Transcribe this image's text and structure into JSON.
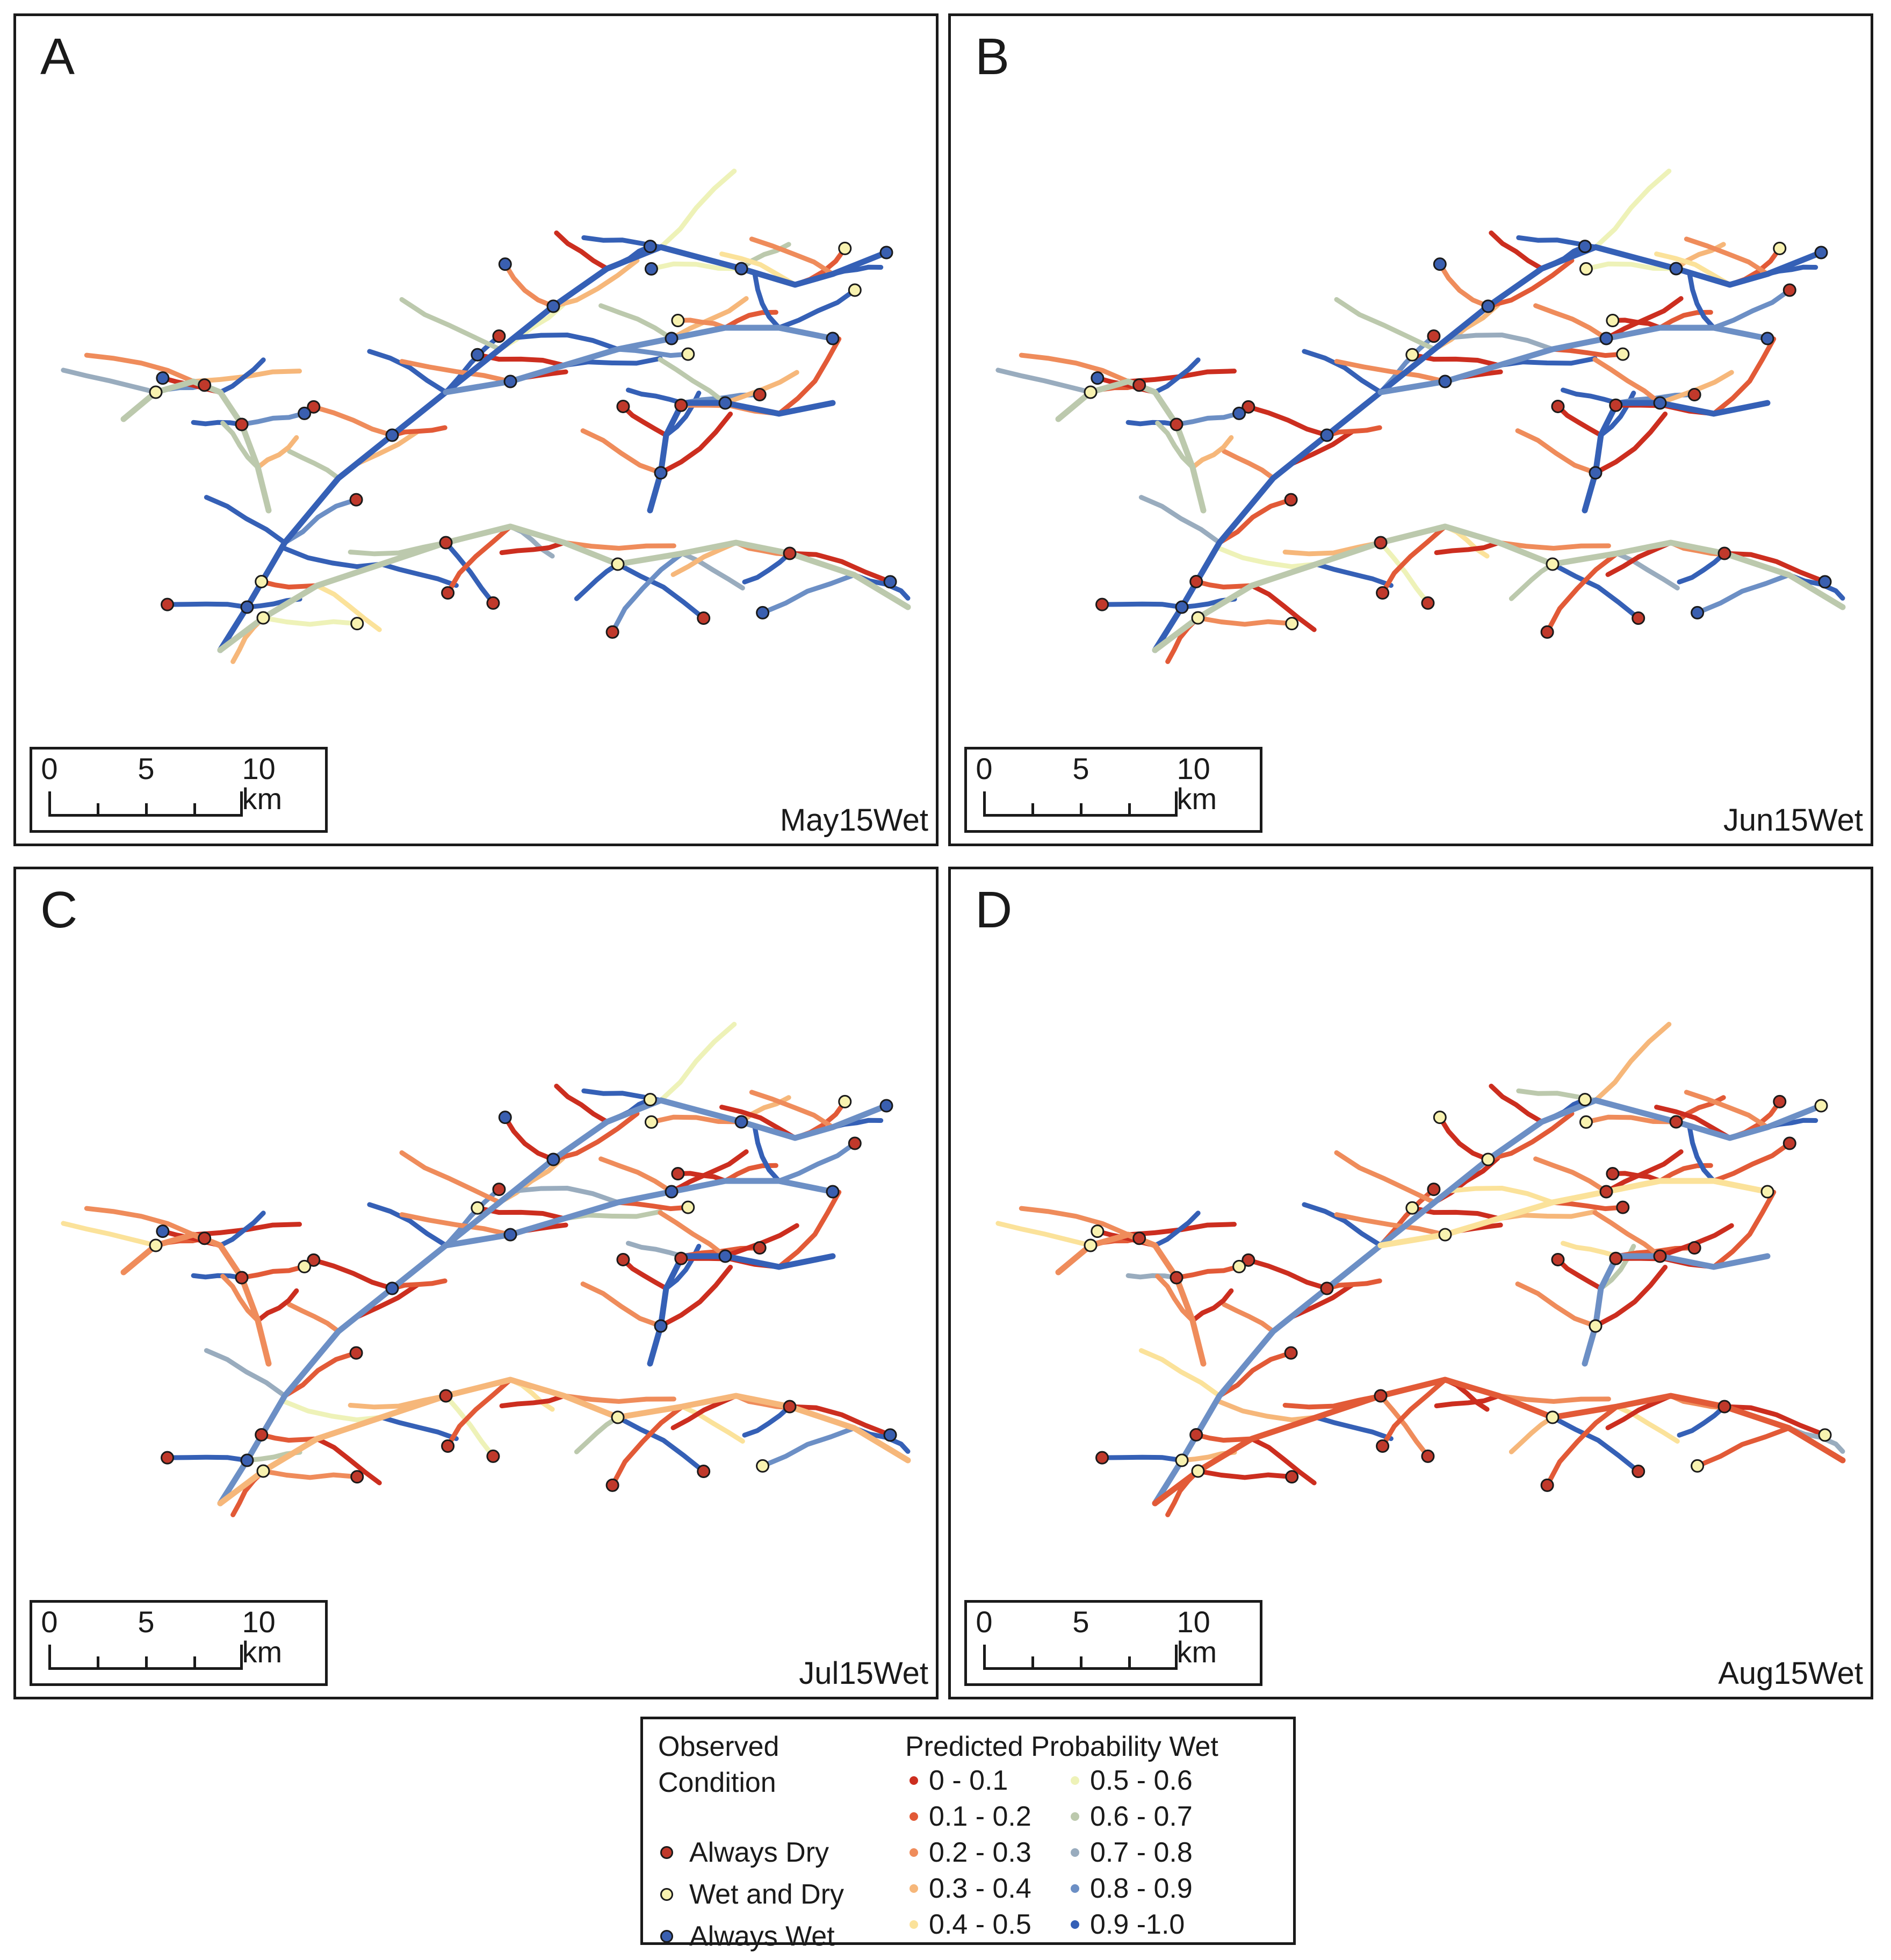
{
  "panels": [
    {
      "letter": "A",
      "caption": "May15Wet",
      "scale": [
        "0",
        "5",
        "10 km"
      ]
    },
    {
      "letter": "B",
      "caption": "Jun15Wet",
      "scale": [
        "0",
        "5",
        "10 km"
      ]
    },
    {
      "letter": "C",
      "caption": "Jul15Wet",
      "scale": [
        "0",
        "5",
        "10 km"
      ]
    },
    {
      "letter": "D",
      "caption": "Aug15Wet",
      "scale": [
        "0",
        "5",
        "10 km"
      ]
    }
  ],
  "legend": {
    "observed_title_1": "Observed",
    "observed_title_2": "Condition",
    "observed_items": [
      {
        "label": "Always Dry",
        "color": "#c0392b"
      },
      {
        "label": "Wet and Dry",
        "color": "#f8f2b0"
      },
      {
        "label": "Always Wet",
        "color": "#3a5fb0"
      }
    ],
    "predicted_title": "Predicted Probability Wet",
    "predicted_items": [
      {
        "label": "0 - 0.1",
        "color": "#cc2e1f"
      },
      {
        "label": "0.1 - 0.2",
        "color": "#e25a37"
      },
      {
        "label": "0.2 - 0.3",
        "color": "#ef8c5b"
      },
      {
        "label": "0.3 - 0.4",
        "color": "#f6b77a"
      },
      {
        "label": "0.4 - 0.5",
        "color": "#fbe29a"
      },
      {
        "label": "0.5 - 0.6",
        "color": "#eef2b8"
      },
      {
        "label": "0.6 - 0.7",
        "color": "#bcc9ad"
      },
      {
        "label": "0.7 - 0.8",
        "color": "#99acbe"
      },
      {
        "label": "0.8 - 0.9",
        "color": "#6c8fc5"
      },
      {
        "label": "0.9 -1.0",
        "color": "#3560b6"
      }
    ]
  }
}
